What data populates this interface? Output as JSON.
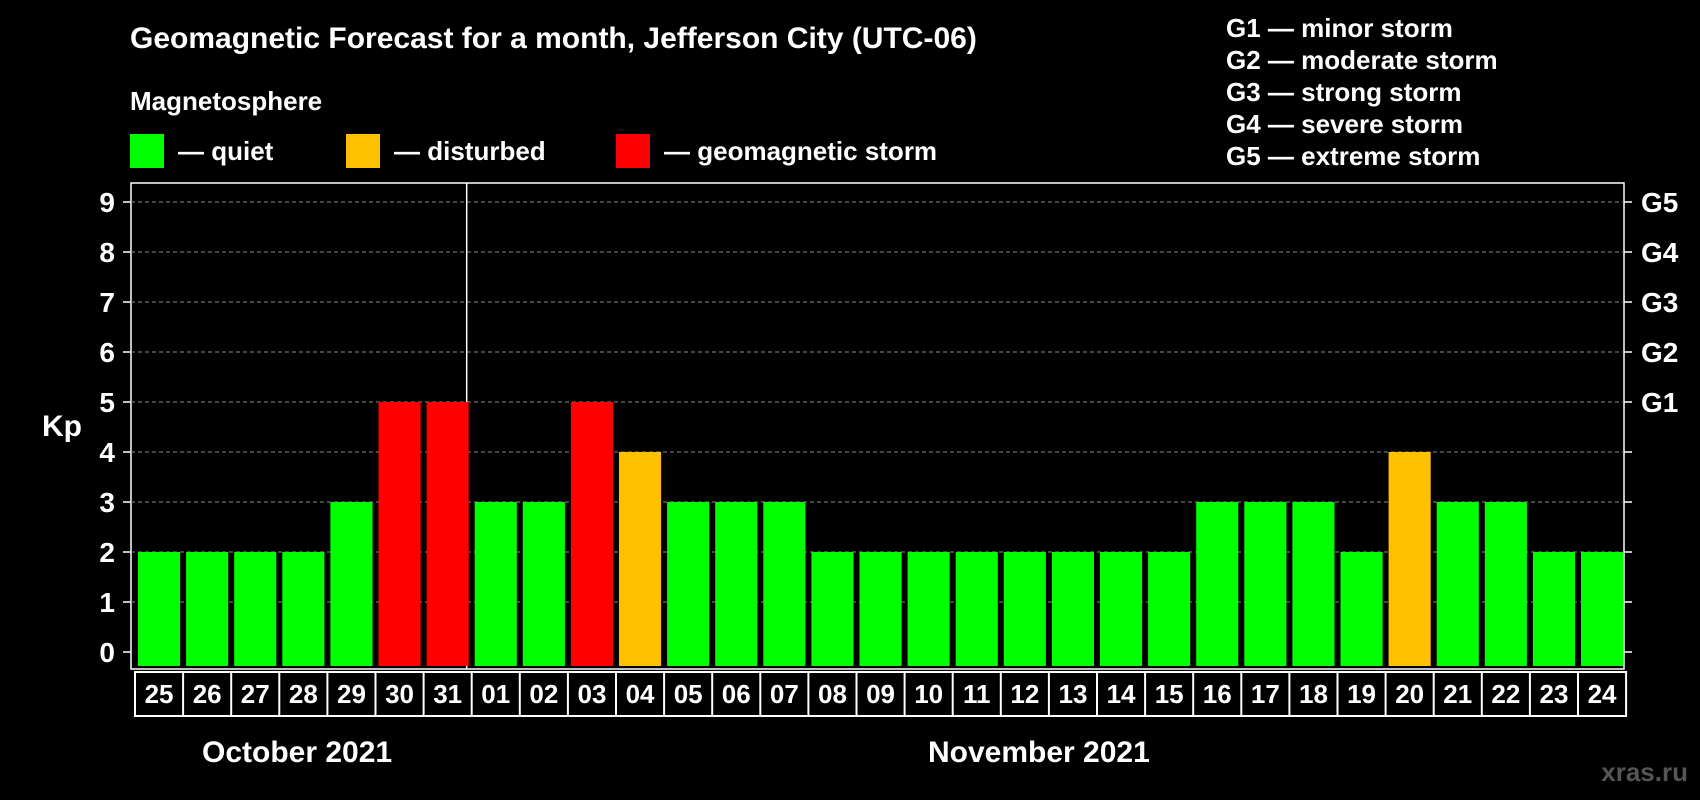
{
  "title": "Geomagnetic Forecast for a month, Jefferson City (UTC-06)",
  "subtitle": "Magnetosphere",
  "legend": [
    {
      "label": "— quiet",
      "color": "#00ff00"
    },
    {
      "label": "— disturbed",
      "color": "#ffc000"
    },
    {
      "label": "— geomagnetic storm",
      "color": "#ff0000"
    }
  ],
  "storm_scale": [
    "G1 — minor storm",
    "G2 — moderate storm",
    "G3 — strong storm",
    "G4 — severe storm",
    "G5 — extreme storm"
  ],
  "watermark": "xras.ru",
  "colors": {
    "quiet": "#00ff00",
    "disturbed": "#ffc000",
    "storm": "#ff0000",
    "background": "#000000",
    "grid": "#888888"
  },
  "chart_data": {
    "type": "bar",
    "ylabel": "Kp",
    "ylim": [
      0,
      9
    ],
    "yticks": [
      "0",
      "1",
      "2",
      "3",
      "4",
      "5",
      "6",
      "7",
      "8",
      "9"
    ],
    "right_axis_labels": [
      {
        "kp": 5,
        "label": "G1"
      },
      {
        "kp": 6,
        "label": "G2"
      },
      {
        "kp": 7,
        "label": "G3"
      },
      {
        "kp": 8,
        "label": "G4"
      },
      {
        "kp": 9,
        "label": "G5"
      }
    ],
    "grid": true,
    "months": [
      {
        "label": "October 2021",
        "days": 7
      },
      {
        "label": "November 2021",
        "days": 24
      }
    ],
    "categories": [
      "25",
      "26",
      "27",
      "28",
      "29",
      "30",
      "31",
      "01",
      "02",
      "03",
      "04",
      "05",
      "06",
      "07",
      "08",
      "09",
      "10",
      "11",
      "12",
      "13",
      "14",
      "15",
      "16",
      "17",
      "18",
      "19",
      "20",
      "21",
      "22",
      "23",
      "24"
    ],
    "values": [
      2,
      2,
      2,
      2,
      3,
      5,
      5,
      3,
      3,
      5,
      4,
      3,
      3,
      3,
      2,
      2,
      2,
      2,
      2,
      2,
      2,
      2,
      3,
      3,
      3,
      2,
      4,
      3,
      3,
      2,
      2
    ]
  }
}
